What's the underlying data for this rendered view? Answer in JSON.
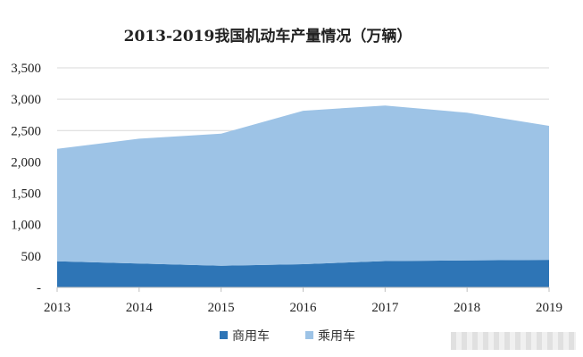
{
  "chart_data": {
    "type": "area",
    "title": "2013-2019我国机动车产量情况（万辆）",
    "x": [
      "2013",
      "2014",
      "2015",
      "2016",
      "2017",
      "2018",
      "2019"
    ],
    "series": [
      {
        "name": "商用车",
        "values": [
          415,
          380,
          345,
          370,
          420,
          430,
          440
        ],
        "color": "#2e75b6"
      },
      {
        "name": "乘用车",
        "values": [
          1795,
          1990,
          2105,
          2445,
          2480,
          2355,
          2135
        ],
        "color": "#9dc3e6"
      }
    ],
    "stacked": true,
    "ylim": [
      0,
      3500
    ],
    "yticks": [
      "-",
      "500",
      "1,000",
      "1,500",
      "2,000",
      "2,500",
      "3,000",
      "3,500"
    ],
    "grid": true,
    "legend_position": "bottom"
  }
}
